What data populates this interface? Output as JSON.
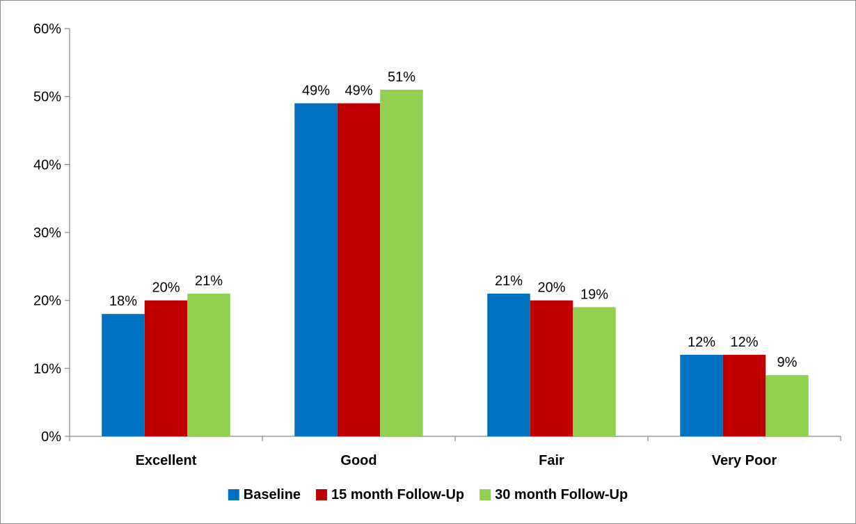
{
  "chart_data": {
    "type": "bar",
    "categories": [
      "Excellent",
      "Good",
      "Fair",
      "Very Poor"
    ],
    "series": [
      {
        "name": "Baseline",
        "values": [
          18,
          49,
          21,
          12
        ],
        "labels": [
          "18%",
          "49%",
          "21%",
          "12%"
        ],
        "color": "#0070C0"
      },
      {
        "name": "15 month Follow-Up",
        "values": [
          20,
          49,
          20,
          12
        ],
        "labels": [
          "20%",
          "49%",
          "20%",
          "12%"
        ],
        "color": "#C00000"
      },
      {
        "name": "30 month Follow-Up",
        "values": [
          21,
          51,
          19,
          9
        ],
        "labels": [
          "21%",
          "51%",
          "19%",
          "9%"
        ],
        "color": "#92D050"
      }
    ],
    "y_ticks": [
      {
        "value": 0,
        "label": "0%"
      },
      {
        "value": 10,
        "label": "10%"
      },
      {
        "value": 20,
        "label": "20%"
      },
      {
        "value": 30,
        "label": "30%"
      },
      {
        "value": 40,
        "label": "40%"
      },
      {
        "value": 50,
        "label": "50%"
      },
      {
        "value": 60,
        "label": "60%"
      }
    ],
    "ylim": [
      0,
      60
    ],
    "grid": false,
    "legend_position": "bottom",
    "axis_color": "#868686"
  }
}
